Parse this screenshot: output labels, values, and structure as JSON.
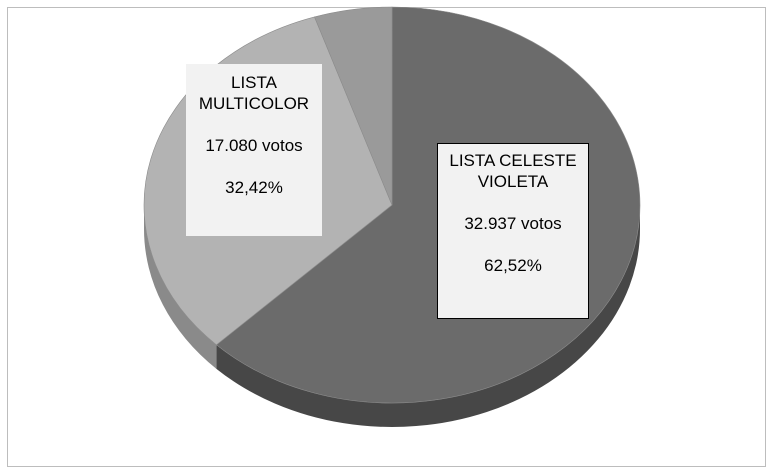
{
  "chart_data": {
    "type": "pie",
    "style": "3d",
    "slices": [
      {
        "name": "LISTA CELESTE VIOLETA",
        "name_lines": [
          "LISTA CELESTE",
          "VIOLETA"
        ],
        "value": 32937,
        "value_label": "32.937 votos",
        "percent": 62.52,
        "percent_label": "62,52%",
        "color": "#6b6b6b",
        "side_color": "#474747"
      },
      {
        "name": "LISTA MULTICOLOR",
        "name_lines": [
          "LISTA",
          "MULTICOLOR"
        ],
        "value": 17080,
        "value_label": "17.080 votos",
        "percent": 32.42,
        "percent_label": "32,42%",
        "color": "#b3b3b3",
        "side_color": "#8a8a8a"
      },
      {
        "name": "",
        "value": 2665,
        "percent": 5.06,
        "color": "#9a9a9a",
        "side_color": "#7a7a7a"
      }
    ],
    "legend": "none"
  }
}
